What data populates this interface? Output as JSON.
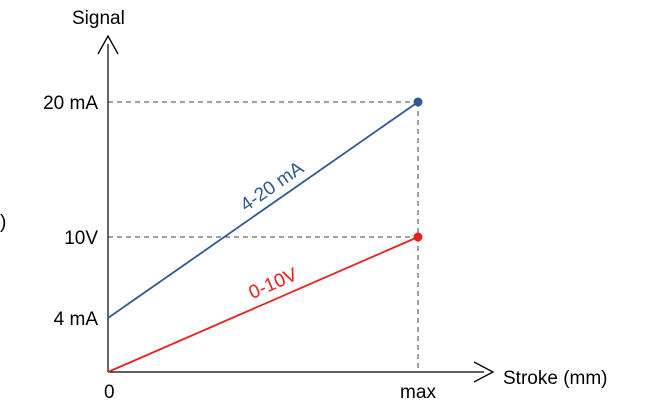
{
  "chart_data": {
    "type": "line",
    "xlabel": "Stroke (mm)",
    "ylabel": "Signal",
    "x_ticks": [
      "0",
      "max"
    ],
    "y_ticks": [
      {
        "label": "4 mA",
        "value": 4
      },
      {
        "label": "10V",
        "value": 10
      },
      {
        "label": "20 mA",
        "value": 20
      }
    ],
    "x": [
      0,
      1
    ],
    "ylim": [
      0,
      23
    ],
    "grid": false,
    "series": [
      {
        "name": "4-20 mA",
        "x": [
          0,
          1
        ],
        "y": [
          4,
          20
        ],
        "color": "#2e5b8e"
      },
      {
        "name": "0-10V",
        "x": [
          0,
          1
        ],
        "y": [
          0,
          10
        ],
        "color": "#e8211c"
      }
    ],
    "annotations": [
      "dashed guide lines to the max endpoint of each line"
    ]
  },
  "page_glyph": ")"
}
